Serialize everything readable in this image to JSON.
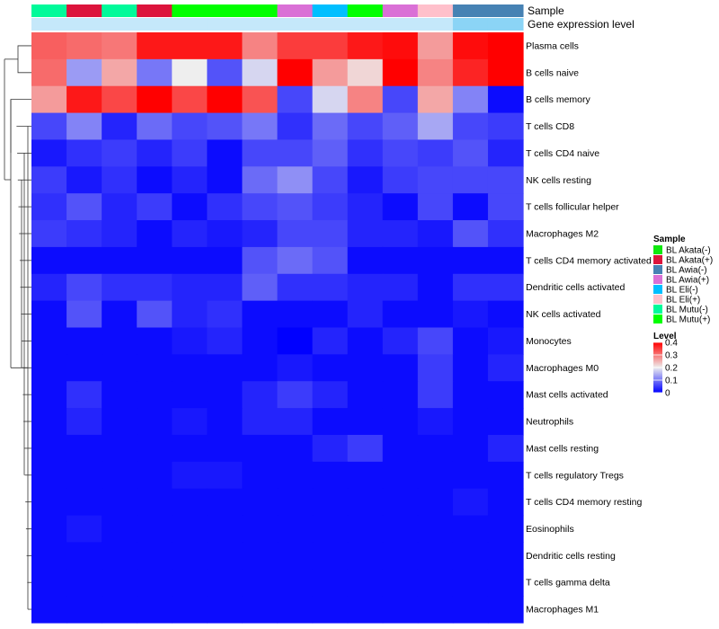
{
  "chart_data": {
    "type": "heatmap",
    "title": "",
    "annotation_labels": [
      "Sample",
      "Gene expression level"
    ],
    "sample_annotation": [
      "BL Mutu(-)",
      "BL Akata(+)",
      "BL Mutu(-)",
      "BL Akata(+)",
      "BL Mutu(+)",
      "BL Mutu(+)",
      "BL Mutu(+)",
      "BL Awia(+)",
      "BL Eli(-)",
      "BL Mutu(+)",
      "BL Awia(+)",
      "BL Eli(+)",
      "BL Awia(-)",
      "BL Awia(-)"
    ],
    "expression_annotation": [
      0.02,
      0.02,
      0.02,
      0.02,
      0.02,
      0.02,
      0.02,
      0.02,
      0.02,
      0.02,
      0.02,
      0.02,
      0.05,
      0.05
    ],
    "rows": [
      "Plasma cells",
      "B cells naive",
      "B cells memory",
      "T cells CD8",
      "T cells CD4 naive",
      "NK cells resting",
      "T cells follicular helper",
      "Macrophages M2",
      "T cells CD4 memory activated",
      "Dendritic cells activated",
      "NK cells activated",
      "Monocytes",
      "Macrophages M0",
      "Mast cells activated",
      "Neutrophils",
      "Mast cells resting",
      "T cells regulatory  Tregs",
      "T cells CD4 memory resting",
      "Eosinophils",
      "Dendritic cells resting",
      "T cells gamma delta",
      "Macrophages M1"
    ],
    "values": [
      [
        0.32,
        0.31,
        0.3,
        0.38,
        0.38,
        0.38,
        0.29,
        0.35,
        0.35,
        0.38,
        0.39,
        0.27,
        0.39,
        0.4
      ],
      [
        0.31,
        0.13,
        0.26,
        0.1,
        0.2,
        0.07,
        0.18,
        0.42,
        0.27,
        0.22,
        0.43,
        0.29,
        0.37,
        0.42
      ],
      [
        0.27,
        0.38,
        0.34,
        0.41,
        0.34,
        0.42,
        0.33,
        0.06,
        0.18,
        0.29,
        0.06,
        0.26,
        0.11,
        0.01
      ],
      [
        0.06,
        0.11,
        0.03,
        0.09,
        0.06,
        0.07,
        0.1,
        0.04,
        0.09,
        0.06,
        0.08,
        0.14,
        0.06,
        0.05
      ],
      [
        0.02,
        0.04,
        0.05,
        0.03,
        0.05,
        0.01,
        0.06,
        0.06,
        0.08,
        0.04,
        0.06,
        0.05,
        0.07,
        0.03
      ],
      [
        0.05,
        0.02,
        0.04,
        0.01,
        0.03,
        0.01,
        0.09,
        0.12,
        0.06,
        0.02,
        0.05,
        0.06,
        0.06,
        0.06
      ],
      [
        0.04,
        0.07,
        0.03,
        0.05,
        0.01,
        0.04,
        0.06,
        0.07,
        0.05,
        0.03,
        0.01,
        0.06,
        0.01,
        0.06
      ],
      [
        0.05,
        0.04,
        0.03,
        0.01,
        0.03,
        0.02,
        0.03,
        0.06,
        0.06,
        0.03,
        0.03,
        0.02,
        0.07,
        0.04
      ],
      [
        0.01,
        0.01,
        0.01,
        0.01,
        0.01,
        0.01,
        0.07,
        0.09,
        0.07,
        0.01,
        0.01,
        0.01,
        0.01,
        0.01
      ],
      [
        0.03,
        0.06,
        0.04,
        0.04,
        0.03,
        0.03,
        0.08,
        0.04,
        0.04,
        0.03,
        0.03,
        0.01,
        0.04,
        0.04
      ],
      [
        0.01,
        0.07,
        0.01,
        0.07,
        0.03,
        0.04,
        0.01,
        0.01,
        0.01,
        0.03,
        0.01,
        0.01,
        0.02,
        0.01
      ],
      [
        0.01,
        0.01,
        0.01,
        0.01,
        0.02,
        0.03,
        0.01,
        0.0,
        0.03,
        0.01,
        0.03,
        0.06,
        0.01,
        0.02
      ],
      [
        0.01,
        0.01,
        0.01,
        0.01,
        0.01,
        0.01,
        0.01,
        0.02,
        0.01,
        0.01,
        0.01,
        0.05,
        0.01,
        0.03
      ],
      [
        0.01,
        0.04,
        0.01,
        0.01,
        0.01,
        0.01,
        0.03,
        0.05,
        0.03,
        0.01,
        0.01,
        0.05,
        0.01,
        0.01
      ],
      [
        0.01,
        0.03,
        0.01,
        0.01,
        0.02,
        0.01,
        0.03,
        0.03,
        0.01,
        0.01,
        0.01,
        0.02,
        0.01,
        0.01
      ],
      [
        0.01,
        0.01,
        0.01,
        0.01,
        0.01,
        0.01,
        0.01,
        0.01,
        0.03,
        0.05,
        0.01,
        0.01,
        0.01,
        0.03
      ],
      [
        0.01,
        0.01,
        0.01,
        0.01,
        0.02,
        0.02,
        0.01,
        0.01,
        0.01,
        0.01,
        0.01,
        0.01,
        0.01,
        0.01
      ],
      [
        0.01,
        0.01,
        0.01,
        0.01,
        0.01,
        0.01,
        0.01,
        0.01,
        0.01,
        0.01,
        0.01,
        0.01,
        0.02,
        0.01
      ],
      [
        0.01,
        0.02,
        0.01,
        0.01,
        0.01,
        0.01,
        0.01,
        0.01,
        0.01,
        0.01,
        0.01,
        0.01,
        0.01,
        0.01
      ],
      [
        0.01,
        0.01,
        0.01,
        0.01,
        0.01,
        0.01,
        0.01,
        0.01,
        0.01,
        0.01,
        0.01,
        0.01,
        0.01,
        0.01
      ],
      [
        0.01,
        0.01,
        0.01,
        0.01,
        0.01,
        0.01,
        0.01,
        0.01,
        0.01,
        0.01,
        0.01,
        0.01,
        0.01,
        0.01
      ],
      [
        0.01,
        0.01,
        0.01,
        0.01,
        0.01,
        0.01,
        0.01,
        0.01,
        0.01,
        0.01,
        0.01,
        0.01,
        0.01,
        0.01
      ]
    ],
    "color_scale": {
      "stops": [
        0,
        0.2,
        0.4
      ],
      "colors": [
        "#0000ff",
        "#eeeeee",
        "#ff0000"
      ]
    },
    "legends": {
      "sample": {
        "title": "Sample",
        "items": [
          {
            "label": "BL Akata(-)",
            "color": "#10e810"
          },
          {
            "label": "BL Akata(+)",
            "color": "#dc143c"
          },
          {
            "label": "BL Awia(-)",
            "color": "#4682b4"
          },
          {
            "label": "BL Awia(+)",
            "color": "#da70d6"
          },
          {
            "label": "BL Eli(-)",
            "color": "#00bfff"
          },
          {
            "label": "BL Eli(+)",
            "color": "#ffc0cb"
          },
          {
            "label": "BL Mutu(-)",
            "color": "#00fa9a"
          },
          {
            "label": "BL Mutu(+)",
            "color": "#00ff00"
          }
        ]
      },
      "level": {
        "title": "Level",
        "ticks": [
          0.4,
          0.3,
          0.2,
          0.1,
          0
        ],
        "tick_labels": [
          "0.4",
          "0.3",
          "0.2",
          "0.1",
          "0"
        ]
      }
    }
  }
}
